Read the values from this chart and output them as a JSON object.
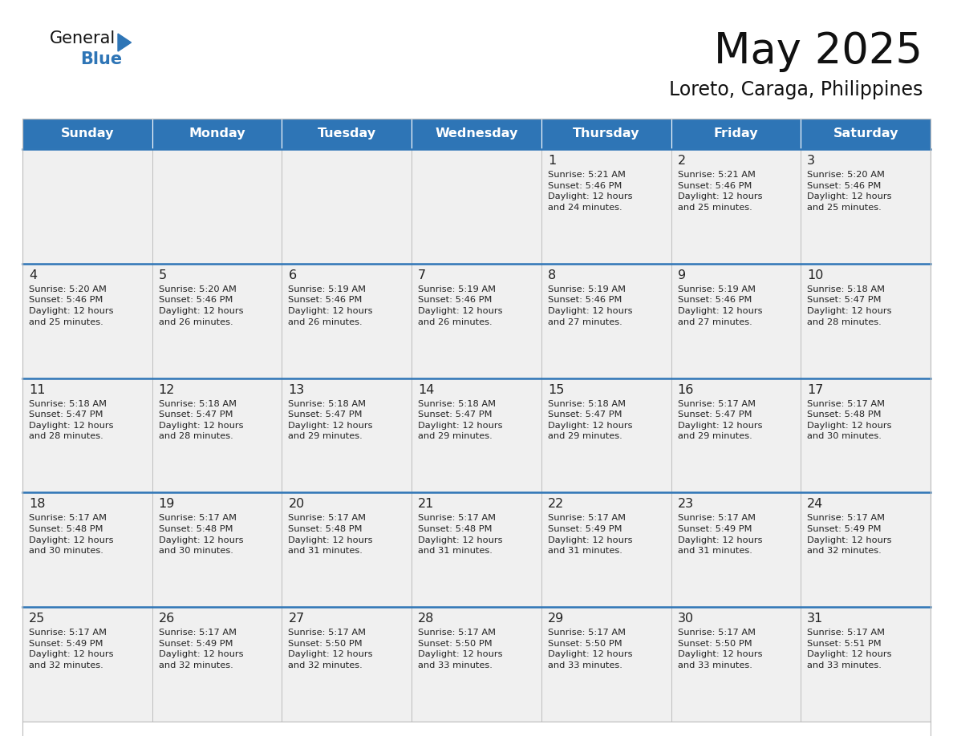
{
  "title": "May 2025",
  "subtitle": "Loreto, Caraga, Philippines",
  "days_of_week": [
    "Sunday",
    "Monday",
    "Tuesday",
    "Wednesday",
    "Thursday",
    "Friday",
    "Saturday"
  ],
  "header_bg": "#2e75b6",
  "header_text": "#ffffff",
  "cell_bg": "#f0f0f0",
  "cell_bg_white": "#ffffff",
  "divider_color": "#2e75b6",
  "border_color": "#bbbbbb",
  "text_color": "#222222",
  "title_color": "#111111",
  "calendar_data": [
    [
      "",
      "",
      "",
      "",
      "1\nSunrise: 5:21 AM\nSunset: 5:46 PM\nDaylight: 12 hours\nand 24 minutes.",
      "2\nSunrise: 5:21 AM\nSunset: 5:46 PM\nDaylight: 12 hours\nand 25 minutes.",
      "3\nSunrise: 5:20 AM\nSunset: 5:46 PM\nDaylight: 12 hours\nand 25 minutes."
    ],
    [
      "4\nSunrise: 5:20 AM\nSunset: 5:46 PM\nDaylight: 12 hours\nand 25 minutes.",
      "5\nSunrise: 5:20 AM\nSunset: 5:46 PM\nDaylight: 12 hours\nand 26 minutes.",
      "6\nSunrise: 5:19 AM\nSunset: 5:46 PM\nDaylight: 12 hours\nand 26 minutes.",
      "7\nSunrise: 5:19 AM\nSunset: 5:46 PM\nDaylight: 12 hours\nand 26 minutes.",
      "8\nSunrise: 5:19 AM\nSunset: 5:46 PM\nDaylight: 12 hours\nand 27 minutes.",
      "9\nSunrise: 5:19 AM\nSunset: 5:46 PM\nDaylight: 12 hours\nand 27 minutes.",
      "10\nSunrise: 5:18 AM\nSunset: 5:47 PM\nDaylight: 12 hours\nand 28 minutes."
    ],
    [
      "11\nSunrise: 5:18 AM\nSunset: 5:47 PM\nDaylight: 12 hours\nand 28 minutes.",
      "12\nSunrise: 5:18 AM\nSunset: 5:47 PM\nDaylight: 12 hours\nand 28 minutes.",
      "13\nSunrise: 5:18 AM\nSunset: 5:47 PM\nDaylight: 12 hours\nand 29 minutes.",
      "14\nSunrise: 5:18 AM\nSunset: 5:47 PM\nDaylight: 12 hours\nand 29 minutes.",
      "15\nSunrise: 5:18 AM\nSunset: 5:47 PM\nDaylight: 12 hours\nand 29 minutes.",
      "16\nSunrise: 5:17 AM\nSunset: 5:47 PM\nDaylight: 12 hours\nand 29 minutes.",
      "17\nSunrise: 5:17 AM\nSunset: 5:48 PM\nDaylight: 12 hours\nand 30 minutes."
    ],
    [
      "18\nSunrise: 5:17 AM\nSunset: 5:48 PM\nDaylight: 12 hours\nand 30 minutes.",
      "19\nSunrise: 5:17 AM\nSunset: 5:48 PM\nDaylight: 12 hours\nand 30 minutes.",
      "20\nSunrise: 5:17 AM\nSunset: 5:48 PM\nDaylight: 12 hours\nand 31 minutes.",
      "21\nSunrise: 5:17 AM\nSunset: 5:48 PM\nDaylight: 12 hours\nand 31 minutes.",
      "22\nSunrise: 5:17 AM\nSunset: 5:49 PM\nDaylight: 12 hours\nand 31 minutes.",
      "23\nSunrise: 5:17 AM\nSunset: 5:49 PM\nDaylight: 12 hours\nand 31 minutes.",
      "24\nSunrise: 5:17 AM\nSunset: 5:49 PM\nDaylight: 12 hours\nand 32 minutes."
    ],
    [
      "25\nSunrise: 5:17 AM\nSunset: 5:49 PM\nDaylight: 12 hours\nand 32 minutes.",
      "26\nSunrise: 5:17 AM\nSunset: 5:49 PM\nDaylight: 12 hours\nand 32 minutes.",
      "27\nSunrise: 5:17 AM\nSunset: 5:50 PM\nDaylight: 12 hours\nand 32 minutes.",
      "28\nSunrise: 5:17 AM\nSunset: 5:50 PM\nDaylight: 12 hours\nand 33 minutes.",
      "29\nSunrise: 5:17 AM\nSunset: 5:50 PM\nDaylight: 12 hours\nand 33 minutes.",
      "30\nSunrise: 5:17 AM\nSunset: 5:50 PM\nDaylight: 12 hours\nand 33 minutes.",
      "31\nSunrise: 5:17 AM\nSunset: 5:51 PM\nDaylight: 12 hours\nand 33 minutes."
    ]
  ]
}
